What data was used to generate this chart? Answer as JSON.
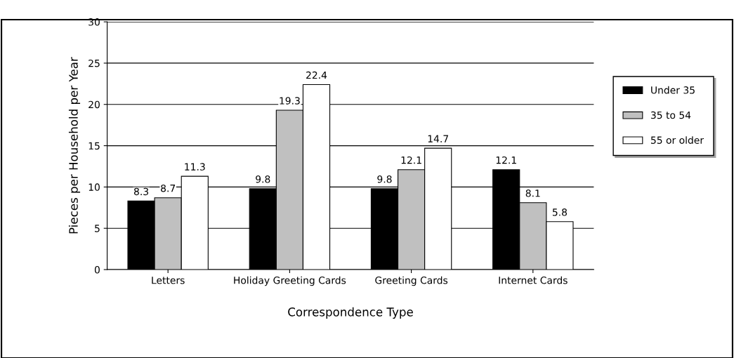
{
  "chart_data": {
    "type": "bar",
    "xlabel": "Correspondence Type",
    "ylabel": "Pieces per Household per Year",
    "categories": [
      "Letters",
      "Holiday Greeting Cards",
      "Greeting Cards",
      "Internet Cards"
    ],
    "series": [
      {
        "name": "Under 35",
        "color": "#000000",
        "values": [
          8.3,
          9.8,
          9.8,
          12.1
        ]
      },
      {
        "name": "35 to 54",
        "color": "#c0c0c0",
        "values": [
          8.7,
          19.3,
          12.1,
          8.1
        ]
      },
      {
        "name": "55 or older",
        "color": "#ffffff",
        "values": [
          11.3,
          22.4,
          14.7,
          5.8
        ]
      }
    ],
    "ylim": [
      0,
      30
    ],
    "yticks": [
      0,
      5,
      10,
      15,
      20,
      25,
      30
    ],
    "grid": "y",
    "legend": "right",
    "data_labels": true
  }
}
